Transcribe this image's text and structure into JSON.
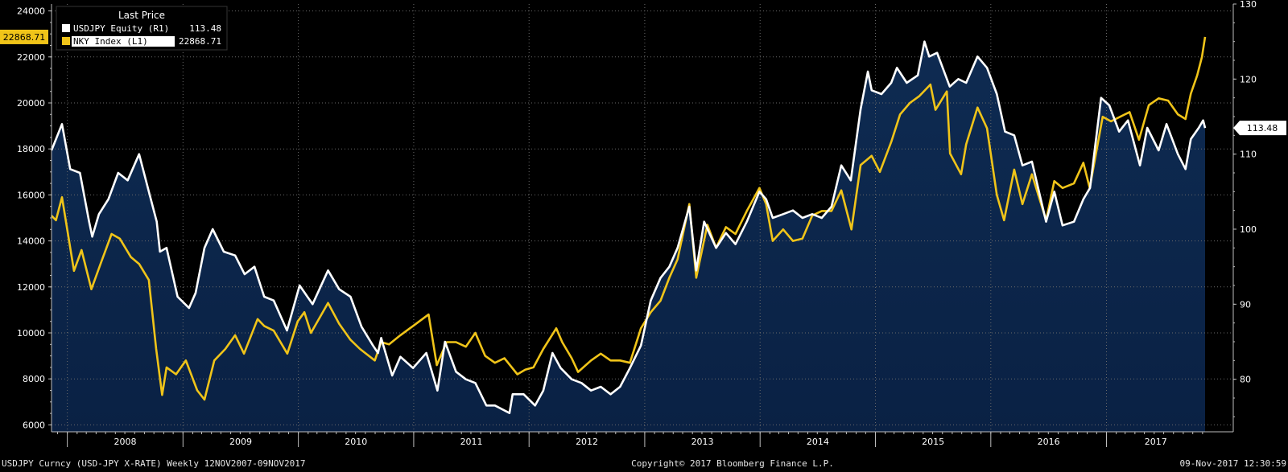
{
  "chart_data": {
    "type": "line",
    "x_range": [
      "2007-11-12",
      "2017-11-09"
    ],
    "legend": {
      "title": "Last Price",
      "placement": "top-left",
      "entries": [
        {
          "name": "USDJPY Equity  (R1)",
          "last": "113.48",
          "color": "#ffffff"
        },
        {
          "name": "NKY Index  (L1)",
          "last": "22868.71",
          "color": "#f0c419"
        }
      ]
    },
    "y_left": {
      "range": [
        5700,
        24300
      ],
      "ticks": [
        "24000",
        "22000",
        "20000",
        "18000",
        "16000",
        "14000",
        "12000",
        "10000",
        "8000",
        "6000"
      ],
      "last_tag": "22868.71"
    },
    "y_right": {
      "range": [
        73,
        130
      ],
      "ticks": [
        "130",
        "120",
        "110",
        "100",
        "90",
        "80"
      ],
      "last_tag": "113.48"
    },
    "x_ticks": [
      "2008",
      "2009",
      "2010",
      "2011",
      "2012",
      "2013",
      "2014",
      "2015",
      "2016",
      "2017"
    ],
    "grid": true,
    "series": [
      {
        "name": "USDJPY Equity  (R1)",
        "axis": "right",
        "style": "area",
        "points": [
          [
            "2007-11-12",
            110.5
          ],
          [
            "2007-12-15",
            114.0
          ],
          [
            "2008-01-10",
            108.0
          ],
          [
            "2008-02-10",
            107.5
          ],
          [
            "2008-03-10",
            101.0
          ],
          [
            "2008-03-20",
            99.0
          ],
          [
            "2008-04-10",
            102.0
          ],
          [
            "2008-05-10",
            104.0
          ],
          [
            "2008-06-10",
            107.5
          ],
          [
            "2008-07-10",
            106.5
          ],
          [
            "2008-08-15",
            110.0
          ],
          [
            "2008-09-15",
            105.0
          ],
          [
            "2008-10-10",
            101.0
          ],
          [
            "2008-10-20",
            97.0
          ],
          [
            "2008-11-10",
            97.5
          ],
          [
            "2008-12-15",
            91.0
          ],
          [
            "2009-01-20",
            89.5
          ],
          [
            "2009-02-10",
            91.5
          ],
          [
            "2009-03-10",
            97.5
          ],
          [
            "2009-04-05",
            100.0
          ],
          [
            "2009-05-10",
            97.0
          ],
          [
            "2009-06-15",
            96.5
          ],
          [
            "2009-07-15",
            94.0
          ],
          [
            "2009-08-15",
            95.0
          ],
          [
            "2009-09-15",
            91.0
          ],
          [
            "2009-10-15",
            90.5
          ],
          [
            "2009-11-26",
            86.5
          ],
          [
            "2010-01-05",
            92.5
          ],
          [
            "2010-02-15",
            90.0
          ],
          [
            "2010-04-05",
            94.5
          ],
          [
            "2010-05-10",
            92.0
          ],
          [
            "2010-06-15",
            91.0
          ],
          [
            "2010-07-20",
            87.0
          ],
          [
            "2010-08-25",
            84.5
          ],
          [
            "2010-09-10",
            83.5
          ],
          [
            "2010-09-20",
            85.5
          ],
          [
            "2010-10-25",
            80.5
          ],
          [
            "2010-11-20",
            83.0
          ],
          [
            "2010-12-30",
            81.5
          ],
          [
            "2011-02-10",
            83.5
          ],
          [
            "2011-03-17",
            78.5
          ],
          [
            "2011-04-10",
            85.0
          ],
          [
            "2011-05-15",
            81.0
          ],
          [
            "2011-06-15",
            80.0
          ],
          [
            "2011-07-15",
            79.5
          ],
          [
            "2011-08-19",
            76.5
          ],
          [
            "2011-09-15",
            76.5
          ],
          [
            "2011-10-31",
            75.5
          ],
          [
            "2011-11-10",
            78.0
          ],
          [
            "2011-12-15",
            78.0
          ],
          [
            "2012-01-20",
            76.5
          ],
          [
            "2012-02-15",
            78.5
          ],
          [
            "2012-03-15",
            83.5
          ],
          [
            "2012-04-10",
            81.5
          ],
          [
            "2012-05-15",
            80.0
          ],
          [
            "2012-06-15",
            79.5
          ],
          [
            "2012-07-15",
            78.5
          ],
          [
            "2012-08-15",
            79.0
          ],
          [
            "2012-09-15",
            78.0
          ],
          [
            "2012-10-15",
            79.0
          ],
          [
            "2012-11-15",
            81.5
          ],
          [
            "2012-12-20",
            84.5
          ],
          [
            "2013-01-20",
            90.5
          ],
          [
            "2013-02-20",
            93.5
          ],
          [
            "2013-03-20",
            95.0
          ],
          [
            "2013-04-15",
            97.5
          ],
          [
            "2013-05-22",
            103.0
          ],
          [
            "2013-06-13",
            94.5
          ],
          [
            "2013-07-08",
            101.0
          ],
          [
            "2013-08-15",
            97.5
          ],
          [
            "2013-09-15",
            99.5
          ],
          [
            "2013-10-15",
            98.0
          ],
          [
            "2013-11-20",
            101.0
          ],
          [
            "2013-12-30",
            105.0
          ],
          [
            "2014-01-20",
            104.0
          ],
          [
            "2014-02-10",
            101.5
          ],
          [
            "2014-03-15",
            102.0
          ],
          [
            "2014-04-15",
            102.5
          ],
          [
            "2014-05-15",
            101.5
          ],
          [
            "2014-06-15",
            102.0
          ],
          [
            "2014-07-15",
            101.5
          ],
          [
            "2014-08-15",
            103.0
          ],
          [
            "2014-09-15",
            108.5
          ],
          [
            "2014-10-15",
            106.5
          ],
          [
            "2014-11-15",
            116.0
          ],
          [
            "2014-12-08",
            121.0
          ],
          [
            "2014-12-20",
            118.5
          ],
          [
            "2015-01-20",
            118.0
          ],
          [
            "2015-02-20",
            119.5
          ],
          [
            "2015-03-10",
            121.5
          ],
          [
            "2015-04-10",
            119.5
          ],
          [
            "2015-05-15",
            120.5
          ],
          [
            "2015-06-05",
            125.0
          ],
          [
            "2015-06-20",
            123.0
          ],
          [
            "2015-07-15",
            123.5
          ],
          [
            "2015-08-24",
            119.0
          ],
          [
            "2015-09-20",
            120.0
          ],
          [
            "2015-10-15",
            119.5
          ],
          [
            "2015-11-20",
            123.0
          ],
          [
            "2015-12-20",
            121.5
          ],
          [
            "2016-01-20",
            118.0
          ],
          [
            "2016-02-15",
            113.0
          ],
          [
            "2016-03-15",
            112.5
          ],
          [
            "2016-04-10",
            108.5
          ],
          [
            "2016-05-10",
            109.0
          ],
          [
            "2016-06-24",
            101.0
          ],
          [
            "2016-07-20",
            105.0
          ],
          [
            "2016-08-15",
            100.5
          ],
          [
            "2016-09-20",
            101.0
          ],
          [
            "2016-10-20",
            104.0
          ],
          [
            "2016-11-10",
            105.5
          ],
          [
            "2016-12-15",
            117.5
          ],
          [
            "2017-01-10",
            116.5
          ],
          [
            "2017-02-10",
            113.0
          ],
          [
            "2017-03-10",
            114.5
          ],
          [
            "2017-04-17",
            108.5
          ],
          [
            "2017-05-10",
            113.5
          ],
          [
            "2017-06-15",
            110.5
          ],
          [
            "2017-07-10",
            114.0
          ],
          [
            "2017-08-15",
            110.0
          ],
          [
            "2017-09-08",
            108.0
          ],
          [
            "2017-09-25",
            112.0
          ],
          [
            "2017-10-20",
            113.5
          ],
          [
            "2017-11-03",
            114.5
          ],
          [
            "2017-11-09",
            113.48
          ]
        ]
      },
      {
        "name": "NKY Index  (L1)",
        "axis": "left",
        "style": "line",
        "points": [
          [
            "2007-11-12",
            15100
          ],
          [
            "2007-11-26",
            14900
          ],
          [
            "2007-12-15",
            15900
          ],
          [
            "2008-01-22",
            12700
          ],
          [
            "2008-02-15",
            13600
          ],
          [
            "2008-03-17",
            11900
          ],
          [
            "2008-04-15",
            13000
          ],
          [
            "2008-05-20",
            14300
          ],
          [
            "2008-06-15",
            14100
          ],
          [
            "2008-07-20",
            13300
          ],
          [
            "2008-08-15",
            13000
          ],
          [
            "2008-09-15",
            12300
          ],
          [
            "2008-10-08",
            9300
          ],
          [
            "2008-10-27",
            7300
          ],
          [
            "2008-11-10",
            8500
          ],
          [
            "2008-12-10",
            8200
          ],
          [
            "2009-01-10",
            8800
          ],
          [
            "2009-02-15",
            7500
          ],
          [
            "2009-03-10",
            7100
          ],
          [
            "2009-04-10",
            8800
          ],
          [
            "2009-05-15",
            9300
          ],
          [
            "2009-06-15",
            9900
          ],
          [
            "2009-07-13",
            9100
          ],
          [
            "2009-08-25",
            10600
          ],
          [
            "2009-09-15",
            10300
          ],
          [
            "2009-10-15",
            10100
          ],
          [
            "2009-11-27",
            9100
          ],
          [
            "2009-12-30",
            10500
          ],
          [
            "2010-01-20",
            10900
          ],
          [
            "2010-02-10",
            10000
          ],
          [
            "2010-04-05",
            11300
          ],
          [
            "2010-05-10",
            10400
          ],
          [
            "2010-06-15",
            9700
          ],
          [
            "2010-07-15",
            9300
          ],
          [
            "2010-08-31",
            8800
          ],
          [
            "2010-09-20",
            9600
          ],
          [
            "2010-10-15",
            9500
          ],
          [
            "2010-11-20",
            9900
          ],
          [
            "2010-12-30",
            10300
          ],
          [
            "2011-02-17",
            10800
          ],
          [
            "2011-03-15",
            8600
          ],
          [
            "2011-04-15",
            9600
          ],
          [
            "2011-05-15",
            9600
          ],
          [
            "2011-06-15",
            9400
          ],
          [
            "2011-07-15",
            10000
          ],
          [
            "2011-08-15",
            9000
          ],
          [
            "2011-09-15",
            8700
          ],
          [
            "2011-10-15",
            8900
          ],
          [
            "2011-11-25",
            8200
          ],
          [
            "2011-12-20",
            8400
          ],
          [
            "2012-01-15",
            8500
          ],
          [
            "2012-02-15",
            9300
          ],
          [
            "2012-03-27",
            10200
          ],
          [
            "2012-04-15",
            9600
          ],
          [
            "2012-05-15",
            8900
          ],
          [
            "2012-06-04",
            8300
          ],
          [
            "2012-07-15",
            8800
          ],
          [
            "2012-08-15",
            9100
          ],
          [
            "2012-09-15",
            8800
          ],
          [
            "2012-10-15",
            8800
          ],
          [
            "2012-11-15",
            8700
          ],
          [
            "2012-12-20",
            10200
          ],
          [
            "2013-01-20",
            10900
          ],
          [
            "2013-02-20",
            11400
          ],
          [
            "2013-03-20",
            12400
          ],
          [
            "2013-04-15",
            13200
          ],
          [
            "2013-05-22",
            15600
          ],
          [
            "2013-06-13",
            12400
          ],
          [
            "2013-07-18",
            14700
          ],
          [
            "2013-08-15",
            13700
          ],
          [
            "2013-09-15",
            14600
          ],
          [
            "2013-10-15",
            14300
          ],
          [
            "2013-11-20",
            15300
          ],
          [
            "2013-12-30",
            16300
          ],
          [
            "2014-01-20",
            15600
          ],
          [
            "2014-02-10",
            14000
          ],
          [
            "2014-03-15",
            14500
          ],
          [
            "2014-04-15",
            14000
          ],
          [
            "2014-05-15",
            14100
          ],
          [
            "2014-06-15",
            15100
          ],
          [
            "2014-07-15",
            15300
          ],
          [
            "2014-08-15",
            15300
          ],
          [
            "2014-09-15",
            16200
          ],
          [
            "2014-10-17",
            14500
          ],
          [
            "2014-11-15",
            17300
          ],
          [
            "2014-12-20",
            17700
          ],
          [
            "2015-01-15",
            17000
          ],
          [
            "2015-02-20",
            18300
          ],
          [
            "2015-03-20",
            19500
          ],
          [
            "2015-04-20",
            20000
          ],
          [
            "2015-05-20",
            20300
          ],
          [
            "2015-06-24",
            20800
          ],
          [
            "2015-07-10",
            19700
          ],
          [
            "2015-08-15",
            20500
          ],
          [
            "2015-08-25",
            17800
          ],
          [
            "2015-09-29",
            16900
          ],
          [
            "2015-10-15",
            18200
          ],
          [
            "2015-11-20",
            19800
          ],
          [
            "2015-12-20",
            18900
          ],
          [
            "2016-01-20",
            16000
          ],
          [
            "2016-02-12",
            14900
          ],
          [
            "2016-03-15",
            17100
          ],
          [
            "2016-04-10",
            15600
          ],
          [
            "2016-05-10",
            16900
          ],
          [
            "2016-06-24",
            14900
          ],
          [
            "2016-07-20",
            16600
          ],
          [
            "2016-08-15",
            16300
          ],
          [
            "2016-09-20",
            16500
          ],
          [
            "2016-10-20",
            17400
          ],
          [
            "2016-11-09",
            16300
          ],
          [
            "2016-12-20",
            19400
          ],
          [
            "2017-01-15",
            19200
          ],
          [
            "2017-03-15",
            19600
          ],
          [
            "2017-04-14",
            18400
          ],
          [
            "2017-05-15",
            19900
          ],
          [
            "2017-06-15",
            20200
          ],
          [
            "2017-07-15",
            20100
          ],
          [
            "2017-08-15",
            19500
          ],
          [
            "2017-09-08",
            19300
          ],
          [
            "2017-09-25",
            20400
          ],
          [
            "2017-10-15",
            21200
          ],
          [
            "2017-10-30",
            22000
          ],
          [
            "2017-11-09",
            22868.71
          ]
        ]
      }
    ]
  },
  "footer": {
    "left": "USDJPY Curncy (USD-JPY X-RATE) Weekly 12NOV2007-09NOV2017",
    "center": "Copyright© 2017 Bloomberg Finance L.P.",
    "right": "09-Nov-2017 12:30:59"
  }
}
